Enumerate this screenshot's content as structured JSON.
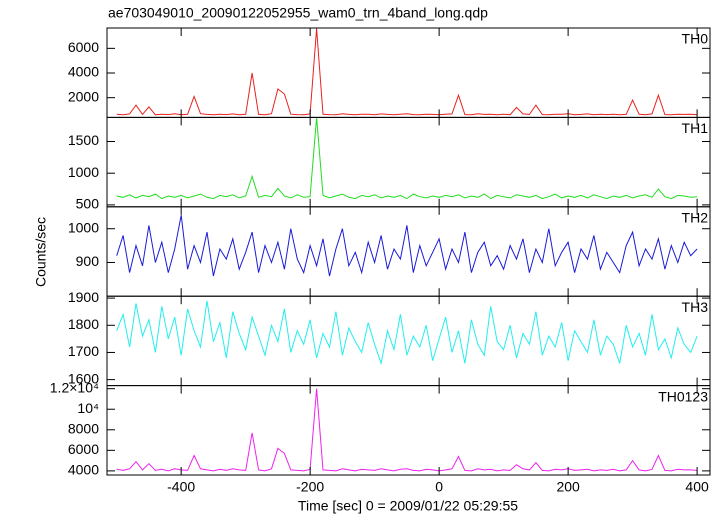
{
  "chart_data": {
    "type": "line",
    "title": "ae703049010_20090122052955_wam0_trn_4band_long.qdp",
    "xlabel": "Time [sec] 0 = 2009/01/22 05:29:55",
    "ylabel": "Counts/sec",
    "xlim": [
      -515,
      420
    ],
    "xticks": [
      -400,
      -200,
      0,
      200,
      400
    ],
    "x": [
      -500,
      -490,
      -480,
      -470,
      -460,
      -450,
      -440,
      -430,
      -420,
      -410,
      -400,
      -390,
      -380,
      -370,
      -360,
      -350,
      -340,
      -330,
      -320,
      -310,
      -300,
      -290,
      -280,
      -270,
      -260,
      -250,
      -240,
      -230,
      -220,
      -210,
      -200,
      -190,
      -180,
      -170,
      -160,
      -150,
      -140,
      -130,
      -120,
      -110,
      -100,
      -90,
      -80,
      -70,
      -60,
      -50,
      -40,
      -30,
      -20,
      -10,
      0,
      10,
      20,
      30,
      40,
      50,
      60,
      70,
      80,
      90,
      100,
      110,
      120,
      130,
      140,
      150,
      160,
      170,
      180,
      190,
      200,
      210,
      220,
      230,
      240,
      250,
      260,
      270,
      280,
      290,
      300,
      310,
      320,
      330,
      340,
      350,
      360,
      370,
      380,
      390,
      400
    ],
    "series": [
      {
        "name": "TH0",
        "color": "#e8221f",
        "ylim": [
          400,
          7650
        ],
        "yticks": [
          2000,
          4000,
          6000
        ],
        "values": [
          650,
          620,
          680,
          1400,
          640,
          1250,
          610,
          660,
          630,
          700,
          620,
          650,
          2100,
          700,
          640,
          610,
          660,
          630,
          680,
          620,
          650,
          4000,
          640,
          620,
          700,
          2700,
          2300,
          660,
          630,
          610,
          680,
          7600,
          650,
          630,
          620,
          700,
          640,
          610,
          660,
          650,
          620,
          680,
          640,
          610,
          650,
          700,
          630,
          620,
          660,
          640,
          610,
          650,
          680,
          2200,
          630,
          620,
          700,
          640,
          660,
          610,
          650,
          620,
          1200,
          680,
          640,
          1400,
          630,
          610,
          660,
          650,
          700,
          620,
          640,
          680,
          610,
          650,
          630,
          660,
          620,
          640,
          1800,
          650,
          610,
          680,
          2200,
          630,
          620,
          660,
          640,
          650,
          620
        ]
      },
      {
        "name": "TH1",
        "color": "#22dd22",
        "ylim": [
          470,
          1880
        ],
        "yticks": [
          500,
          1000,
          1500
        ],
        "values": [
          640,
          620,
          660,
          610,
          650,
          630,
          670,
          600,
          640,
          620,
          650,
          610,
          640,
          670,
          620,
          600,
          650,
          630,
          660,
          610,
          640,
          950,
          620,
          650,
          630,
          760,
          640,
          610,
          660,
          620,
          630,
          1880,
          650,
          610,
          640,
          670,
          620,
          600,
          650,
          630,
          660,
          610,
          640,
          620,
          650,
          600,
          670,
          630,
          610,
          640,
          620,
          650,
          630,
          660,
          610,
          640,
          620,
          670,
          600,
          650,
          630,
          610,
          660,
          640,
          620,
          650,
          600,
          630,
          670,
          610,
          640,
          620,
          650,
          610,
          660,
          630,
          600,
          640,
          620,
          650,
          610,
          640,
          660,
          620,
          750,
          630,
          600,
          650,
          640,
          620,
          630
        ]
      },
      {
        "name": "TH2",
        "color": "#1a1ad8",
        "ylim": [
          800,
          1065
        ],
        "yticks": [
          900,
          1000
        ],
        "values": [
          920,
          980,
          870,
          950,
          890,
          1010,
          900,
          960,
          870,
          940,
          1040,
          880,
          950,
          900,
          990,
          860,
          940,
          910,
          970,
          880,
          930,
          990,
          870,
          950,
          900,
          960,
          880,
          1000,
          910,
          870,
          950,
          890,
          970,
          860,
          940,
          1000,
          890,
          930,
          870,
          960,
          900,
          980,
          880,
          940,
          910,
          1010,
          870,
          950,
          890,
          930,
          970,
          880,
          940,
          900,
          990,
          870,
          930,
          960,
          890,
          920,
          880,
          950,
          910,
          970,
          870,
          940,
          900,
          1000,
          890,
          930,
          960,
          870,
          940,
          910,
          980,
          880,
          930,
          900,
          870,
          950,
          990,
          890,
          940,
          910,
          970,
          880,
          950,
          900,
          960,
          920,
          940
        ]
      },
      {
        "name": "TH3",
        "color": "#22eeee",
        "ylim": [
          1578,
          1907
        ],
        "yticks": [
          1600,
          1700,
          1800,
          1900
        ],
        "values": [
          1780,
          1840,
          1720,
          1880,
          1760,
          1820,
          1700,
          1870,
          1750,
          1830,
          1690,
          1860,
          1780,
          1720,
          1890,
          1740,
          1810,
          1680,
          1850,
          1770,
          1710,
          1830,
          1760,
          1690,
          1800,
          1740,
          1860,
          1700,
          1780,
          1730,
          1820,
          1680,
          1770,
          1720,
          1850,
          1690,
          1790,
          1740,
          1700,
          1810,
          1730,
          1660,
          1780,
          1710,
          1840,
          1690,
          1760,
          1720,
          1800,
          1670,
          1750,
          1830,
          1700,
          1780,
          1660,
          1820,
          1730,
          1690,
          1870,
          1740,
          1710,
          1800,
          1680,
          1770,
          1730,
          1850,
          1690,
          1760,
          1720,
          1810,
          1670,
          1780,
          1740,
          1700,
          1820,
          1690,
          1760,
          1730,
          1660,
          1800,
          1720,
          1770,
          1690,
          1840,
          1710,
          1750,
          1680,
          1790,
          1730,
          1700,
          1760
        ]
      },
      {
        "name": "TH0123",
        "color": "#ee22ee",
        "ylim": [
          3600,
          12300
        ],
        "yticks": [
          4000,
          6000,
          8000,
          {
            "value": 10000,
            "label": "10⁴"
          },
          {
            "value": 12000,
            "label": "1.2×10⁴"
          }
        ],
        "values": [
          4150,
          4050,
          4200,
          4900,
          4100,
          4700,
          4050,
          4150,
          4000,
          4200,
          4100,
          4050,
          5500,
          4200,
          4100,
          4000,
          4150,
          4050,
          4200,
          4100,
          4050,
          7700,
          4100,
          4000,
          4200,
          6200,
          5700,
          4100,
          4050,
          4000,
          4150,
          12000,
          4100,
          4050,
          4000,
          4200,
          4100,
          4000,
          4150,
          4100,
          4050,
          4200,
          4100,
          4000,
          4150,
          4200,
          4050,
          4000,
          4150,
          4100,
          4000,
          4100,
          4200,
          5400,
          4050,
          4000,
          4200,
          4100,
          4150,
          4000,
          4100,
          4050,
          4600,
          4200,
          4100,
          4800,
          4050,
          4000,
          4150,
          4100,
          4200,
          4050,
          4100,
          4150,
          4000,
          4100,
          4050,
          4150,
          4000,
          4100,
          5000,
          4100,
          4000,
          4150,
          5500,
          4050,
          4000,
          4150,
          4100,
          4100,
          4050
        ]
      }
    ]
  }
}
